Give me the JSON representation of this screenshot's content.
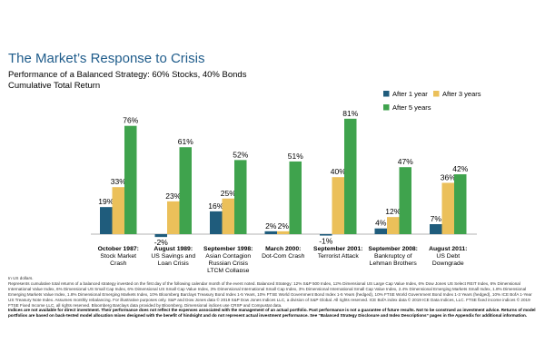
{
  "header": {
    "title": "The Market’s Response to Crisis",
    "subtitle": "Performance of a Balanced Strategy: 60% Stocks, 40% Bonds",
    "subtitle2": "Cumulative Total Return"
  },
  "colors": {
    "after_1_year": "#1f5c7c",
    "after_3_years": "#ebc05a",
    "after_5_years": "#3fa34d",
    "title": "#1f5c8b"
  },
  "chart_data": {
    "type": "bar",
    "title": "",
    "xlabel": "",
    "ylabel": "",
    "ylim": [
      -5,
      85
    ],
    "grid": false,
    "legend_position": "top-right",
    "categories": [
      {
        "line1": "October 1987:",
        "line2": "Stock Market",
        "line3": "Crash",
        "line4": ""
      },
      {
        "line1": "August 1989:",
        "line2": "US Savings and",
        "line3": "Loan Crisis",
        "line4": ""
      },
      {
        "line1": "September 1998:",
        "line2": "Asian Contagion",
        "line3": "Russian Crisis",
        "line4": "LTCM Collapse"
      },
      {
        "line1": "March 2000:",
        "line2": "Dot-Com Crash",
        "line3": "",
        "line4": ""
      },
      {
        "line1": "September 2001:",
        "line2": "Terrorist Attack",
        "line3": "",
        "line4": ""
      },
      {
        "line1": "September 2008:",
        "line2": "Bankruptcy of",
        "line3": "Lehman Brothers",
        "line4": ""
      },
      {
        "line1": "August 2011:",
        "line2": "US Debt",
        "line3": "Downgrade",
        "line4": ""
      }
    ],
    "series": [
      {
        "name": "After 1 year",
        "color_key": "after_1_year",
        "values": [
          19,
          -2,
          16,
          2,
          -1,
          4,
          7
        ],
        "labels": [
          "19%",
          "-2%",
          "16%",
          "2%",
          "-1%",
          "4%",
          "7%"
        ]
      },
      {
        "name": "After 3 years",
        "color_key": "after_3_years",
        "values": [
          33,
          23,
          25,
          2,
          40,
          12,
          36
        ],
        "labels": [
          "33%",
          "23%",
          "25%",
          "2%",
          "40%",
          "12%",
          "36%"
        ]
      },
      {
        "name": "After 5 years",
        "color_key": "after_5_years",
        "values": [
          76,
          61,
          52,
          51,
          81,
          47,
          42
        ],
        "labels": [
          "76%",
          "61%",
          "52%",
          "51%",
          "81%",
          "47%",
          "42%"
        ]
      }
    ]
  },
  "footnotes": {
    "line1": "In US dollars.",
    "body": "Represents cumulative total returns of a balanced strategy invested on the first day of the following calendar month of the event noted. Balanced Strategy: 12% S&P 500 Index, 12% Dimensional US Large Cap Value Index, 6% Dow Jones US Select REIT Index, 6% Dimensional International Value Index, 6% Dimensional US Small Cap Index, 6% Dimensional US Small Cap Value Index, 3% Dimensional International Small Cap Index, 3% Dimensional International Small Cap Value Index, 2.4% Dimensional Emerging Markets Small Index, 1.8% Dimensional Emerging Markets Value Index, 1.8% Dimensional Emerging Markets Index, 10% Bloomberg Barclays Treasury Bond Index 1-5 Years, 10% FTSE World Government Bond Index 1-5 Years (hedged), 10% FTSE World Government Bond Index 1-3 Years (hedged), 10% ICE BofA 1-Year US Treasury Note Index. Assumes monthly rebalancing. For illustrative purposes only. S&P and Dow Jones data © 2019 S&P Dow Jones Indices LLC, a division of S&P Global. All rights reserved. ICE BofA index data © 2019 ICE Data Indices, LLC. FTSE fixed income indices © 2019 FTSE Fixed Income LLC, all rights reserved. Bloomberg Barclays data provided by Bloomberg. Dimensional indices use CRSP and Compustat data.",
    "disclaimer": "Indices are not available for direct investment. Their performance does not reflect the expenses associated with the management of an actual portfolio. Past performance is not a guarantee of future results. Not to be construed as investment advice. Returns of model portfolios are based on back-tested model allocation mixes designed with the benefit of hindsight and do not represent actual investment performance. See “Balanced Strategy Disclosure and Index Descriptions” pages in the Appendix for additional information."
  }
}
